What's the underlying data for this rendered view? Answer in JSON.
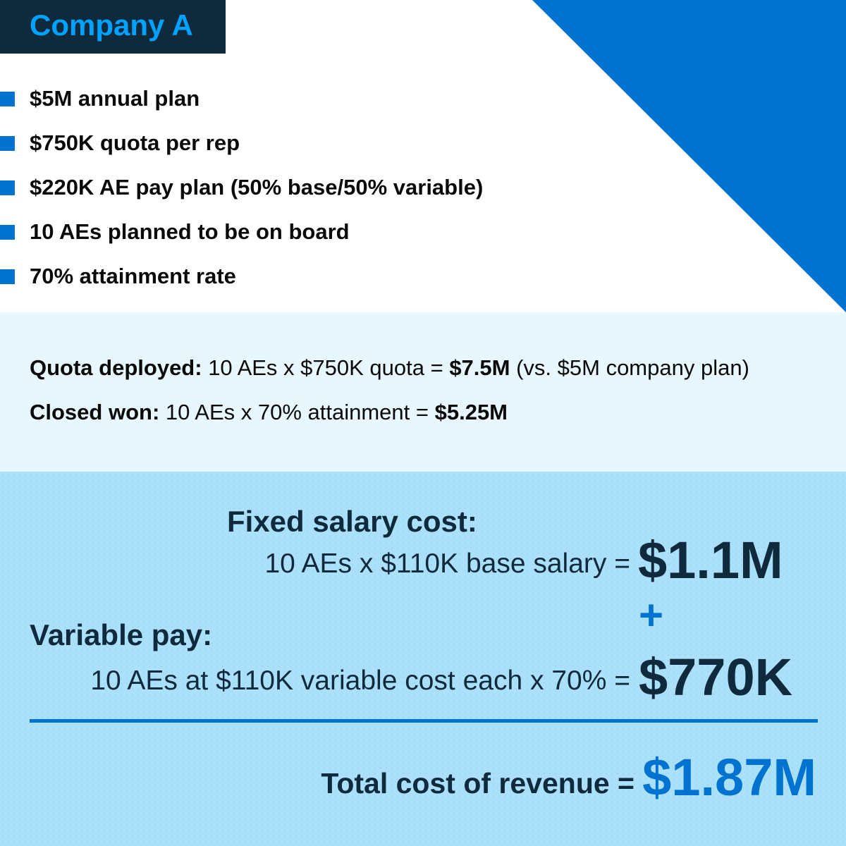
{
  "header": {
    "title": "Company A"
  },
  "colors": {
    "navy": "#0f293d",
    "blue": "#0073d1",
    "title_cyan": "#00a1ff",
    "light_band": "#e8f6fd",
    "bottom_band": "#abe0fa"
  },
  "bullets": [
    {
      "icon": "square-bullet-icon",
      "text": "$5M annual plan"
    },
    {
      "icon": "square-bullet-icon",
      "text": "$750K quota per rep"
    },
    {
      "icon": "square-bullet-icon",
      "text": "$220K AE pay plan (50% base/50% variable)"
    },
    {
      "icon": "square-bullet-icon",
      "text": "10 AEs planned to be on board"
    },
    {
      "icon": "square-bullet-icon",
      "text": "70% attainment rate"
    }
  ],
  "summary": {
    "quota": {
      "label": "Quota deployed:",
      "formula": " 10 AEs x $750K quota = ",
      "result": "$7.5M",
      "note": " (vs. $5M company plan)"
    },
    "closed": {
      "label": "Closed won:",
      "formula": " 10 AEs x 70% attainment = ",
      "result": "$5.25M"
    }
  },
  "costs": {
    "fixed": {
      "label": "Fixed salary cost:",
      "formula": "10 AEs x $110K base salary =",
      "value": "$1.1M"
    },
    "plus": "+",
    "variable": {
      "label": "Variable pay:",
      "formula": "10 AEs at $110K variable cost each x 70% =",
      "value": "$770K"
    },
    "total": {
      "label": "Total cost of revenue =",
      "value": "$1.87M"
    }
  }
}
